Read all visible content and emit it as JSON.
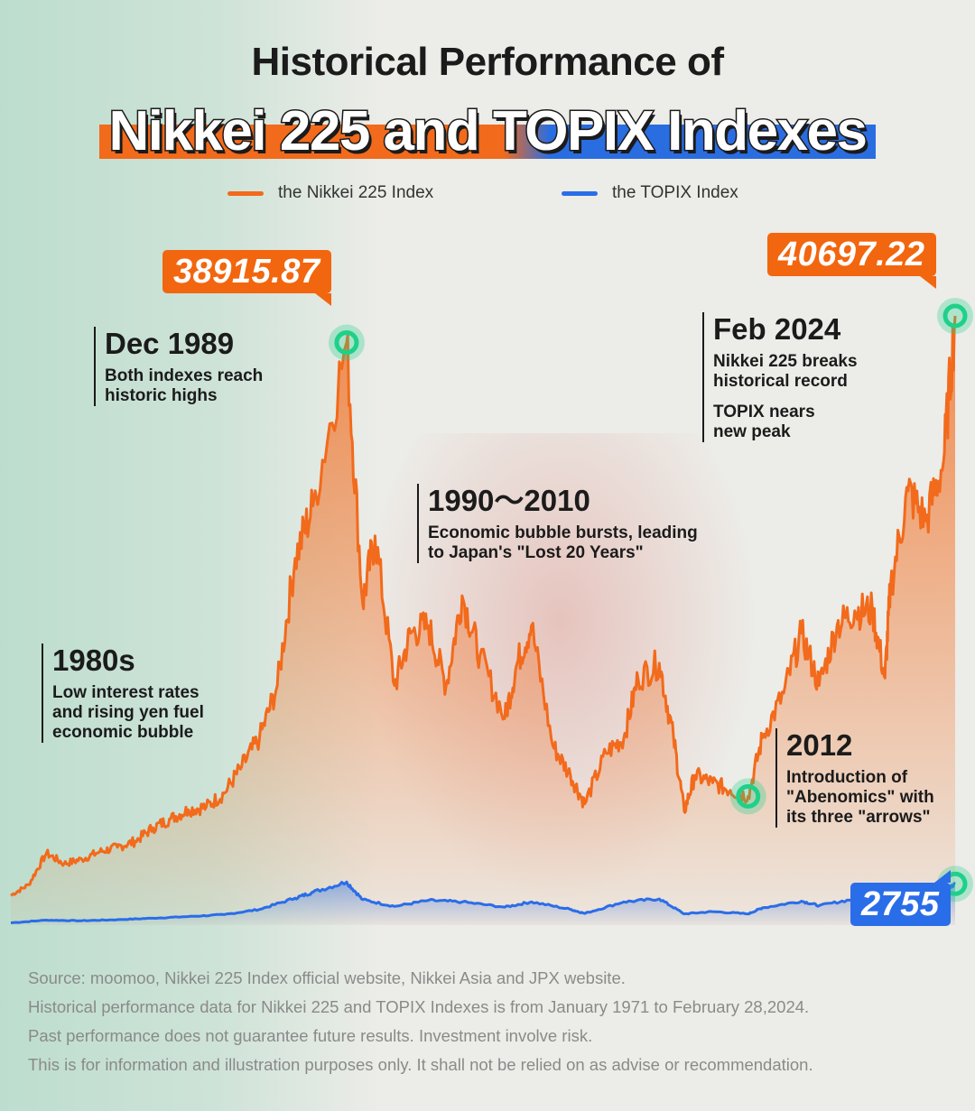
{
  "title_line1": "Historical Performance of",
  "title_line2": "Nikkei 225 and TOPIX Indexes",
  "colors": {
    "nikkei": "#f26a1b",
    "topix": "#2a6de8",
    "marker": "#1fd08a"
  },
  "chart_data": {
    "type": "line",
    "x_range": [
      "1971-01",
      "2024-02"
    ],
    "series": [
      {
        "name": "the Nikkei 225 Index",
        "x": [
          1971,
          1972,
          1973,
          1974,
          1975,
          1976,
          1977,
          1978,
          1979,
          1980,
          1981,
          1982,
          1983,
          1984,
          1985,
          1986,
          1987,
          1988,
          1989.9,
          1990.8,
          1991.5,
          1992.6,
          1993.5,
          1994.5,
          1995.5,
          1996.4,
          1997.4,
          1998.8,
          1999.5,
          2000.3,
          2001.5,
          2002.5,
          2003.3,
          2004.5,
          2005.5,
          2006.3,
          2007.5,
          2008.3,
          2008.9,
          2009.5,
          2010.5,
          2011.5,
          2012.5,
          2013.3,
          2014.5,
          2015.5,
          2016.5,
          2017.5,
          2018.5,
          2019.5,
          2020.2,
          2020.5,
          2021.5,
          2022.5,
          2023.5,
          2024.15
        ],
        "values": [
          1980,
          2700,
          4800,
          4100,
          4400,
          4900,
          5200,
          5600,
          6500,
          7100,
          7700,
          7900,
          8800,
          10600,
          12500,
          16000,
          24500,
          28000,
          38915.87,
          21500,
          26000,
          16000,
          19500,
          20000,
          16000,
          22000,
          18000,
          13800,
          17500,
          20000,
          12000,
          10000,
          8100,
          11500,
          12500,
          16500,
          17500,
          12500,
          7600,
          10000,
          9500,
          9000,
          8600,
          12500,
          15500,
          19500,
          16000,
          20000,
          21000,
          21000,
          16500,
          22500,
          29000,
          27000,
          31000,
          40697.22
        ]
      },
      {
        "name": "the TOPIX Index",
        "x": [
          1971,
          1973,
          1975,
          1977,
          1979,
          1981,
          1983,
          1985,
          1987,
          1988,
          1989.9,
          1990.8,
          1992.6,
          1994.5,
          1996.4,
          1998.8,
          2000.3,
          2002.5,
          2003.3,
          2005.5,
          2007.5,
          2008.9,
          2010.5,
          2012.5,
          2013.3,
          2015.5,
          2016.5,
          2018.5,
          2020.2,
          2021.5,
          2023.5,
          2024.15
        ],
        "values": [
          150,
          330,
          290,
          360,
          460,
          570,
          700,
          1050,
          1800,
          2200,
          2880,
          1700,
          1250,
          1650,
          1550,
          1200,
          1550,
          1050,
          780,
          1550,
          1750,
          750,
          900,
          750,
          1150,
          1600,
          1300,
          1750,
          1300,
          1950,
          2300,
          2755
        ]
      }
    ],
    "callouts": {
      "nikkei_peak_1989": "38915.87",
      "nikkei_peak_2024": "40697.22",
      "topix_2024": "2755"
    },
    "annotations": [
      {
        "heading": "Dec 1989",
        "lines": [
          "Both indexes reach",
          "historic highs"
        ]
      },
      {
        "heading": "Feb 2024",
        "lines": [
          "Nikkei 225 breaks",
          "historical record"
        ],
        "lines2": [
          "TOPIX nears",
          "new peak"
        ]
      },
      {
        "heading": "1990～2010",
        "lines": [
          "Economic bubble bursts, leading",
          "to Japan's \"Lost 20 Years\""
        ]
      },
      {
        "heading": "1980s",
        "lines": [
          "Low interest rates",
          "and rising yen fuel",
          "economic bubble"
        ]
      },
      {
        "heading": "2012",
        "lines": [
          "Introduction of",
          "\"Abenomics\" with",
          "its three \"arrows\""
        ]
      }
    ]
  },
  "footer": [
    "Source: moomoo, Nikkei 225 Index official website, Nikkei Asia and JPX website.",
    "Historical performance data for Nikkei 225 and TOPIX Indexes is from January 1971 to February 28,2024.",
    "Past performance does not guarantee future results. Investment involve risk.",
    "This is for information and illustration purposes only. It shall not be relied on as advise or recommendation."
  ]
}
